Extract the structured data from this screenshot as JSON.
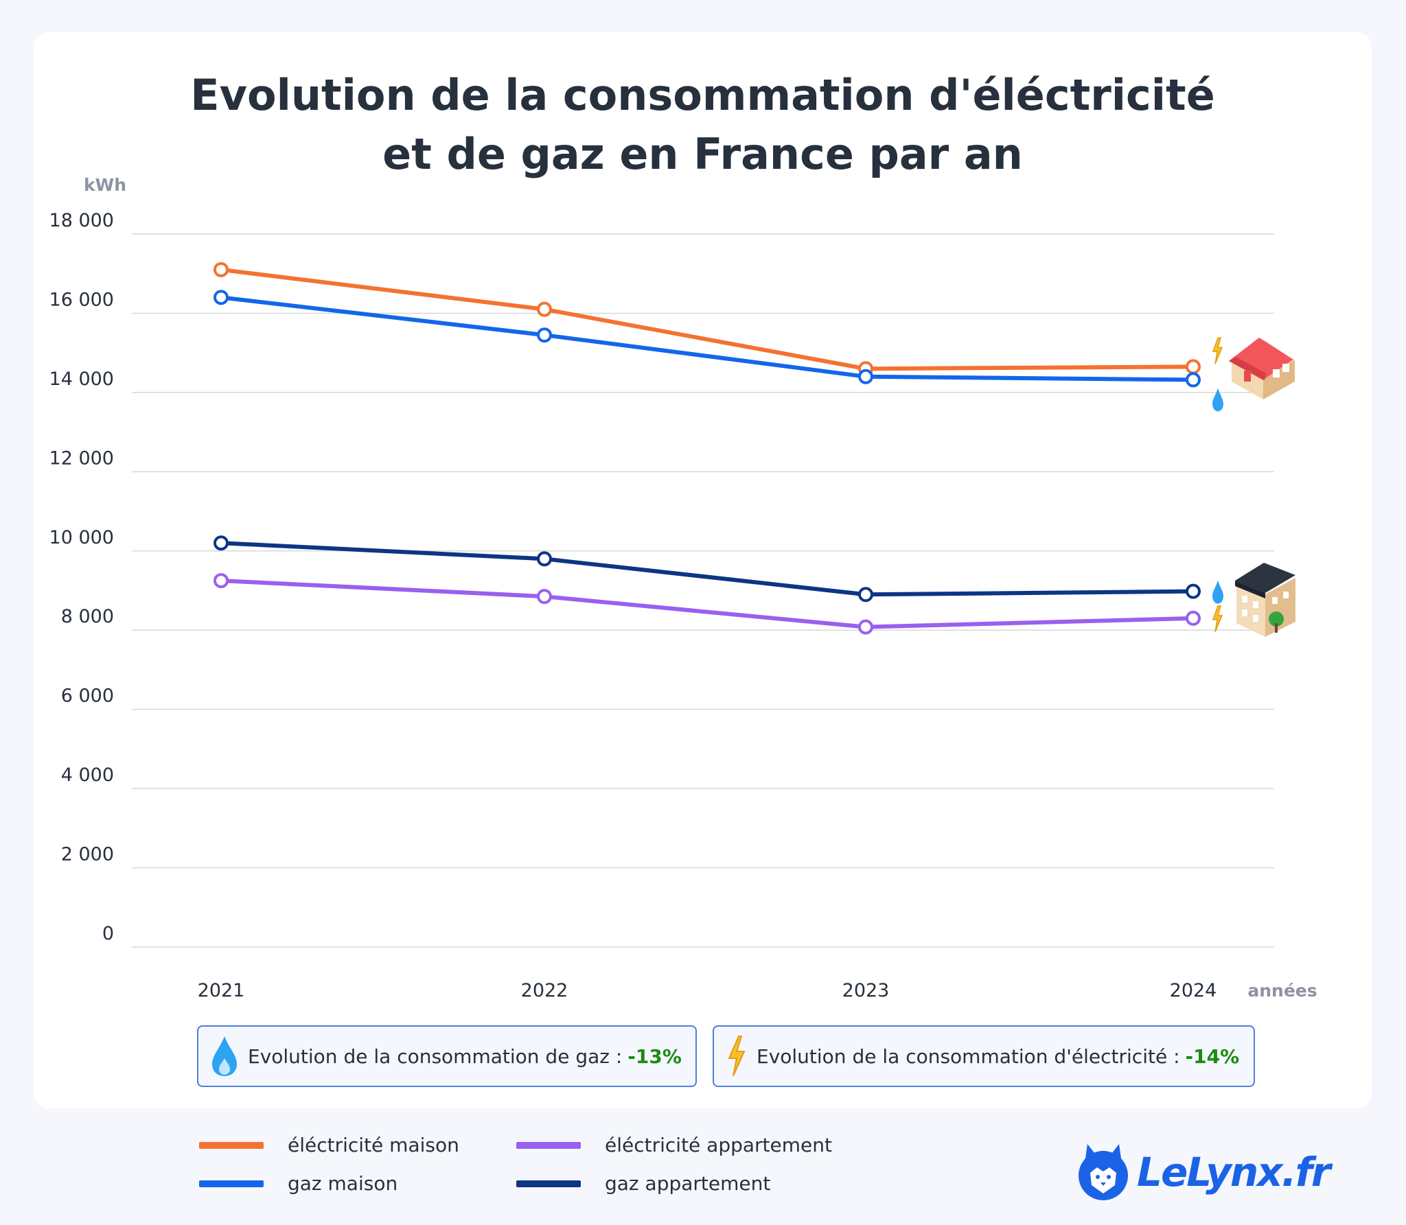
{
  "chart_data": {
    "type": "line",
    "title": "Evolution de la consommation d'éléctricité et de gaz en France par an",
    "title_lines": [
      "Evolution de la consommation d'éléctricité",
      "et de gaz en France par an"
    ],
    "ylabel": "kWh",
    "xlabel": "années",
    "ylim": [
      0,
      18000
    ],
    "y_ticks": [
      0,
      2000,
      4000,
      6000,
      8000,
      10000,
      12000,
      14000,
      16000,
      18000
    ],
    "y_tick_labels": [
      "0",
      "2 000",
      "4 000",
      "6 000",
      "8 000",
      "10 000",
      "12 000",
      "14 000",
      "16 000",
      "18 000"
    ],
    "categories": [
      "2021",
      "2022",
      "2023",
      "2024"
    ],
    "grid": true,
    "series": [
      {
        "name": "éléctricité maison",
        "color": "#f47230",
        "values": [
          17100,
          16100,
          14600,
          14650
        ],
        "end_icon": "lightning-icon"
      },
      {
        "name": "gaz maison",
        "color": "#1366ea",
        "values": [
          16400,
          15450,
          14400,
          14320
        ],
        "end_icon": "gas-drop-icon"
      },
      {
        "name": "gaz appartement",
        "color": "#0d3585",
        "values": [
          10200,
          9800,
          8900,
          8980
        ],
        "end_icon": "gas-drop-icon"
      },
      {
        "name": "éléctricité appartement",
        "color": "#9a5ff0",
        "values": [
          9250,
          8850,
          8080,
          8300
        ],
        "end_icon": "lightning-icon"
      }
    ],
    "end_images": {
      "house": "house-icon",
      "apartment": "apartment-building-icon"
    }
  },
  "summary": {
    "gas": {
      "label": "Evolution de la consommation de gaz :",
      "value": "-13%",
      "icon": "gas-drop-icon"
    },
    "electricity": {
      "label": "Evolution de la consommation d'électricité  :",
      "value": "-14%",
      "icon": "lightning-icon"
    }
  },
  "legend": [
    {
      "label": "éléctricité maison",
      "color": "#f47230"
    },
    {
      "label": "gaz maison",
      "color": "#1366ea"
    },
    {
      "label": "éléctricité appartement",
      "color": "#9a5ff0"
    },
    {
      "label": "gaz appartement",
      "color": "#0d3585"
    }
  ],
  "brand": {
    "name": "LeLynx.fr",
    "icon": "lynx-logo-icon"
  }
}
